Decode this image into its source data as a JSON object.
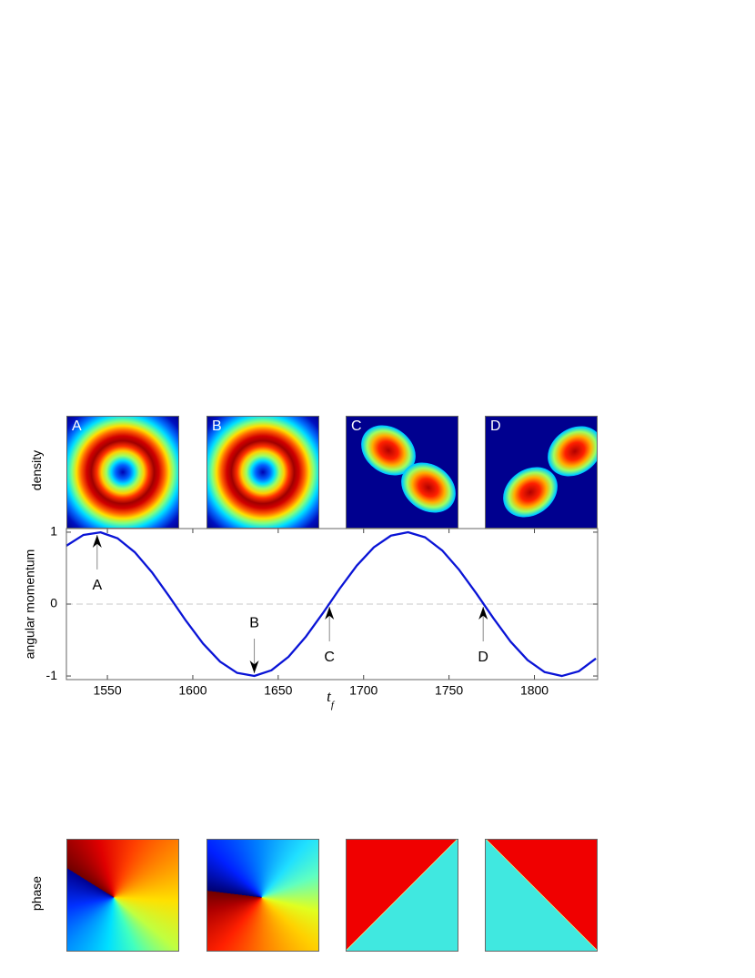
{
  "chart_data": {
    "type": "line",
    "ylabel": "angular momentum",
    "xlabel": {
      "text": "t",
      "subscript": "f"
    },
    "x": [
      1526,
      1536,
      1546,
      1556,
      1566,
      1576,
      1586,
      1596,
      1606,
      1616,
      1626,
      1636,
      1646,
      1656,
      1666,
      1676,
      1686,
      1696,
      1706,
      1716,
      1726,
      1736,
      1746,
      1756,
      1766,
      1776,
      1786,
      1796,
      1806,
      1816,
      1826,
      1836
    ],
    "series": [
      {
        "color": "#0a14d6",
        "values": [
          0.811,
          0.962,
          0.998,
          0.914,
          0.722,
          0.445,
          0.113,
          -0.232,
          -0.549,
          -0.801,
          -0.957,
          -0.999,
          -0.921,
          -0.734,
          -0.459,
          -0.131,
          0.215,
          0.535,
          0.79,
          0.952,
          0.999,
          0.928,
          0.746,
          0.474,
          0.148,
          -0.197,
          -0.521,
          -0.779,
          -0.946,
          -1.0,
          -0.934,
          -0.757
        ]
      }
    ],
    "xlim": [
      1526,
      1837
    ],
    "ylim": [
      -1.05,
      1.05
    ],
    "xticks": [
      1550,
      1600,
      1650,
      1700,
      1750,
      1800
    ],
    "yticks": [
      -1,
      0,
      1
    ],
    "zero_line": true,
    "annotations": [
      {
        "text": "A",
        "x": 1544,
        "y": 1,
        "direction": "up"
      },
      {
        "text": "B",
        "x": 1636,
        "y": -1,
        "direction": "down"
      },
      {
        "text": "C",
        "x": 1680,
        "y": 0,
        "direction": "up"
      },
      {
        "text": "D",
        "x": 1770,
        "y": 0,
        "direction": "up"
      }
    ]
  },
  "panels": {
    "row_labels": [
      "density",
      "phase"
    ],
    "columns": [
      "A",
      "B",
      "C",
      "D"
    ]
  }
}
